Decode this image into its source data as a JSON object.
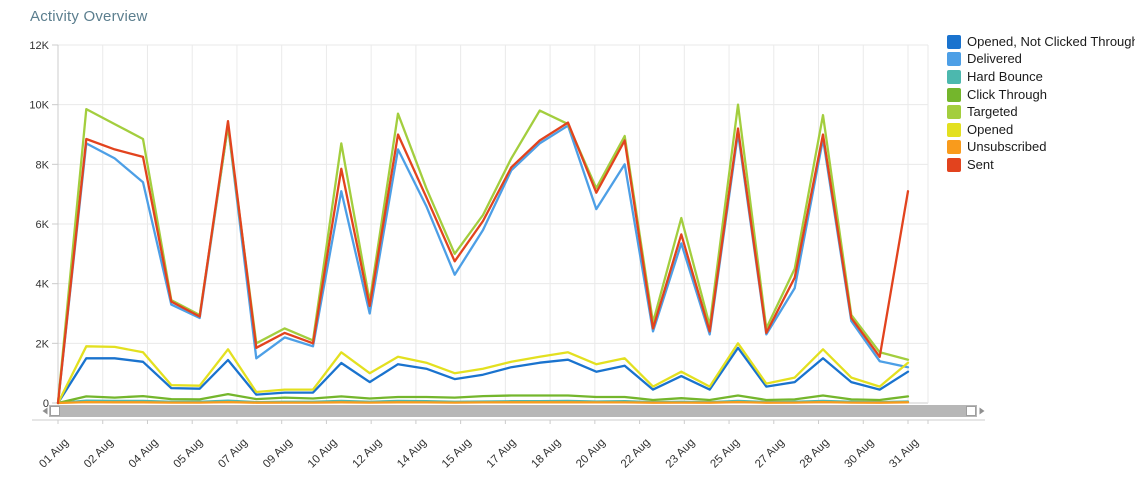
{
  "title": "Activity Overview",
  "colors": {
    "title": "#5B7E8E",
    "axis_text": "#333333",
    "grid": "#EAEAEA",
    "axis_line": "#CCCCCC",
    "scrollbar_track": "#B7B7B7",
    "scrollbar_handle_fill": "#FFFFFF",
    "scrollbar_handle_border": "#9E9E9E",
    "scrollbar_arrow": "#8F8F8F",
    "legend_text": "#1B1B1B"
  },
  "scrollbar": {
    "left_arrow": "left-arrow",
    "right_arrow": "right-arrow"
  },
  "chart_data": {
    "type": "line",
    "title": "Activity Overview",
    "xlabel": "",
    "ylabel": "",
    "ylim": [
      0,
      12000
    ],
    "grid": true,
    "legend_position": "right",
    "y_ticks": [
      "0",
      "2K",
      "4K",
      "6K",
      "8K",
      "10K",
      "12K"
    ],
    "y_tick_values": [
      0,
      2000,
      4000,
      6000,
      8000,
      10000,
      12000
    ],
    "x": [
      "01 Aug",
      "02 Aug",
      "03 Aug",
      "04 Aug",
      "05 Aug",
      "06 Aug",
      "07 Aug",
      "08 Aug",
      "09 Aug",
      "10 Aug",
      "11 Aug",
      "12 Aug",
      "13 Aug",
      "14 Aug",
      "15 Aug",
      "16 Aug",
      "17 Aug",
      "18 Aug",
      "19 Aug",
      "20 Aug",
      "21 Aug",
      "22 Aug",
      "23 Aug",
      "24 Aug",
      "25 Aug",
      "26 Aug",
      "27 Aug",
      "28 Aug",
      "29 Aug",
      "30 Aug",
      "31 Aug"
    ],
    "x_axis_visible_labels": [
      "01 Aug",
      "02 Aug",
      "04 Aug",
      "05 Aug",
      "07 Aug",
      "09 Aug",
      "10 Aug",
      "12 Aug",
      "14 Aug",
      "15 Aug",
      "17 Aug",
      "18 Aug",
      "20 Aug",
      "22 Aug",
      "23 Aug",
      "25 Aug",
      "27 Aug",
      "28 Aug",
      "30 Aug",
      "31 Aug"
    ],
    "series": [
      {
        "name": "Opened, Not Clicked Through",
        "color": "#1A73CE",
        "values": [
          0,
          1500,
          1500,
          1380,
          500,
          480,
          1440,
          280,
          350,
          350,
          1340,
          700,
          1300,
          1150,
          800,
          950,
          1200,
          1350,
          1450,
          1050,
          1250,
          450,
          900,
          450,
          1850,
          550,
          700,
          1500,
          700,
          450,
          1050
        ]
      },
      {
        "name": "Delivered",
        "color": "#4D9FE6",
        "values": [
          0,
          8700,
          8200,
          7400,
          3300,
          2850,
          9300,
          1500,
          2200,
          1900,
          7100,
          3000,
          8500,
          6600,
          4300,
          5800,
          7800,
          8700,
          9300,
          6500,
          8000,
          2400,
          5350,
          2300,
          9050,
          2300,
          3850,
          8850,
          2750,
          1400,
          1200
        ]
      },
      {
        "name": "Hard Bounce",
        "color": "#4CB8AE",
        "values": [
          0,
          80,
          70,
          70,
          40,
          40,
          80,
          30,
          40,
          40,
          70,
          40,
          70,
          60,
          40,
          50,
          60,
          60,
          70,
          50,
          60,
          30,
          40,
          30,
          70,
          30,
          40,
          70,
          40,
          30,
          50
        ]
      },
      {
        "name": "Click Through",
        "color": "#74B62C",
        "values": [
          0,
          220,
          180,
          230,
          130,
          120,
          300,
          130,
          180,
          150,
          220,
          150,
          200,
          200,
          180,
          230,
          250,
          250,
          250,
          200,
          200,
          100,
          160,
          100,
          250,
          100,
          120,
          250,
          120,
          100,
          220
        ]
      },
      {
        "name": "Targeted",
        "color": "#A3CE3E",
        "values": [
          0,
          9850,
          9350,
          8850,
          3450,
          2950,
          9300,
          2000,
          2500,
          2100,
          8700,
          3400,
          9700,
          7200,
          5000,
          6300,
          8200,
          9800,
          9350,
          7200,
          8950,
          2700,
          6200,
          2600,
          10000,
          2500,
          4500,
          9650,
          2950,
          1700,
          1450
        ]
      },
      {
        "name": "Opened",
        "color": "#E3E020",
        "values": [
          0,
          1900,
          1880,
          1700,
          600,
          580,
          1800,
          370,
          450,
          450,
          1700,
          1000,
          1550,
          1350,
          1000,
          1150,
          1380,
          1550,
          1700,
          1300,
          1500,
          550,
          1050,
          550,
          2000,
          650,
          850,
          1800,
          850,
          550,
          1350
        ]
      },
      {
        "name": "Unsubscribed",
        "color": "#F99B1C",
        "values": [
          0,
          30,
          25,
          25,
          15,
          15,
          30,
          10,
          15,
          15,
          25,
          15,
          25,
          20,
          15,
          20,
          25,
          25,
          25,
          20,
          20,
          10,
          15,
          10,
          30,
          10,
          15,
          30,
          15,
          10,
          25
        ]
      },
      {
        "name": "Sent",
        "color": "#E2431E",
        "values": [
          0,
          8850,
          8500,
          8250,
          3400,
          2900,
          9450,
          1850,
          2350,
          2000,
          7850,
          3250,
          9000,
          6900,
          4750,
          6100,
          7900,
          8800,
          9400,
          7050,
          8800,
          2500,
          5650,
          2400,
          9200,
          2350,
          4200,
          9000,
          2850,
          1550,
          7100
        ]
      }
    ]
  }
}
